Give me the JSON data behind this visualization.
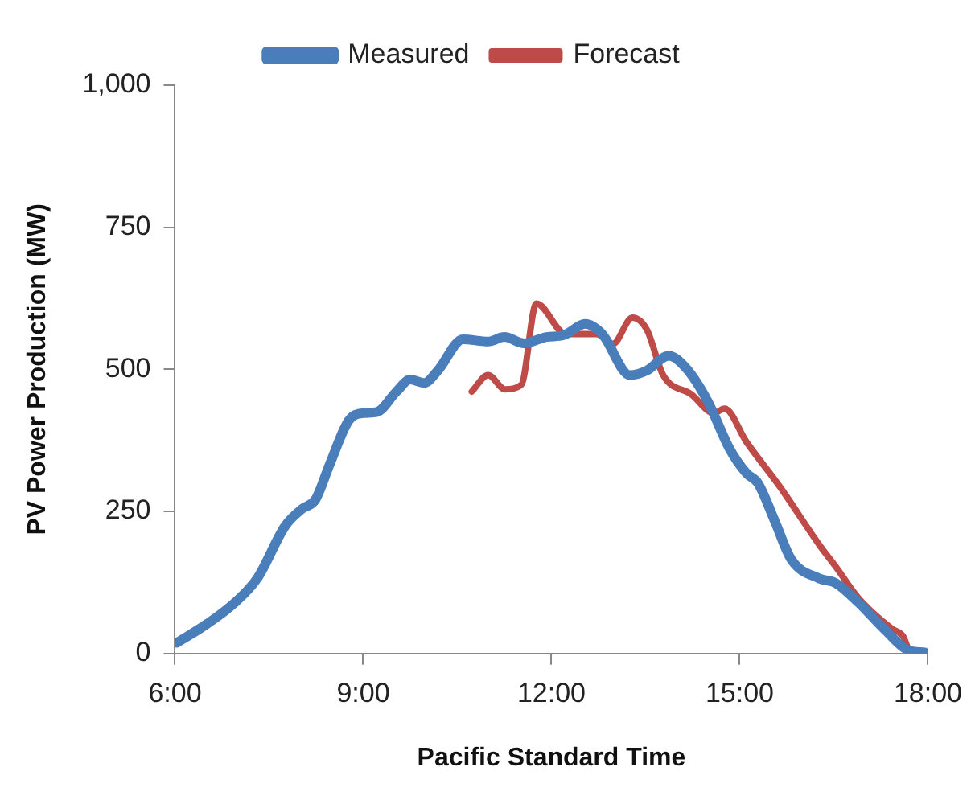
{
  "chart_data": {
    "type": "line",
    "xlabel": "Pacific Standard Time",
    "ylabel": "PV Power Production (MW)",
    "xlim": [
      6,
      18
    ],
    "xticks": [
      {
        "value": 6,
        "label": "6:00"
      },
      {
        "value": 9,
        "label": "9:00"
      },
      {
        "value": 12,
        "label": "12:00"
      },
      {
        "value": 15,
        "label": "15:00"
      },
      {
        "value": 18,
        "label": "18:00"
      }
    ],
    "ylim": [
      0,
      1000
    ],
    "yticks": [
      0,
      250,
      500,
      750,
      {
        "value": 1000,
        "label": "1,000"
      }
    ],
    "grid": false,
    "legend": "top",
    "marker": "none",
    "line_style": "solid",
    "series": [
      {
        "name": "Measured",
        "color": "#4a7ebb",
        "x": [
          6.03,
          6.51,
          6.96,
          7.31,
          7.76,
          8.02,
          8.24,
          8.47,
          8.77,
          9.0,
          9.22,
          9.53,
          9.75,
          9.97,
          10.19,
          10.59,
          10.99,
          11.25,
          11.56,
          11.92,
          12.19,
          12.54,
          12.81,
          13.25,
          13.52,
          13.87,
          14.14,
          14.49,
          14.84,
          15.11,
          15.29,
          15.56,
          15.82,
          16.27,
          16.53,
          16.89,
          17.33,
          17.68,
          17.95
        ],
        "values": [
          19,
          52,
          90,
          132,
          225,
          254,
          271,
          334,
          410,
          423,
          425,
          461,
          482,
          476,
          498,
          553,
          549,
          557,
          546,
          557,
          560,
          580,
          562,
          490,
          498,
          524,
          503,
          444,
          360,
          317,
          300,
          233,
          166,
          132,
          124,
          90,
          40,
          6,
          2
        ]
      },
      {
        "name": "Forecast",
        "color": "#be4b48",
        "x": [
          10.73,
          10.99,
          11.26,
          11.52,
          11.76,
          12.23,
          12.72,
          12.98,
          13.29,
          13.52,
          13.78,
          14.23,
          14.59,
          14.76,
          15.11,
          15.65,
          16.27,
          16.53,
          16.89,
          17.42,
          17.6,
          17.73,
          17.99
        ],
        "values": [
          461,
          490,
          465,
          473,
          616,
          562,
          562,
          545,
          591,
          570,
          490,
          456,
          423,
          431,
          372,
          292,
          191,
          153,
          98,
          44,
          31,
          2,
          2
        ]
      }
    ]
  }
}
